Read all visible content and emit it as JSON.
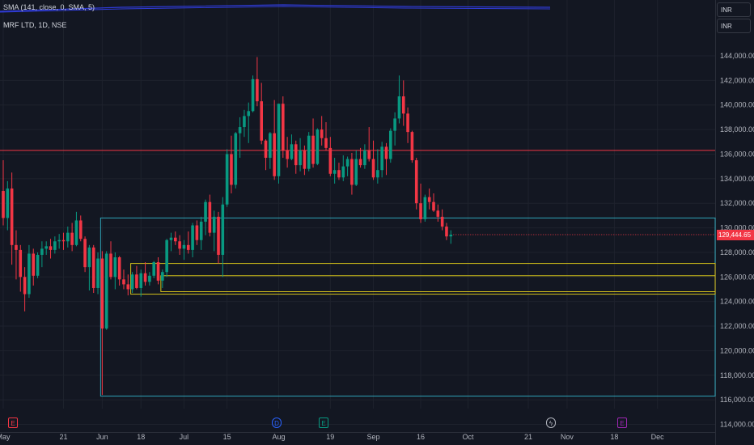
{
  "header": {
    "indicator": "SMA (141, close, 0, SMA, 5)",
    "symbol": "MRF LTD, 1D, NSE",
    "currency_top": "INR",
    "currency_second": "INR"
  },
  "last_price_label": "129,444.65",
  "colors": {
    "up": "#089981",
    "down": "#f23645",
    "bg": "#131722",
    "grid": "#1e222d",
    "hline": "#f23645",
    "box_blue": "#2fa4b8",
    "box_yellow": "#d4c21a",
    "sma": "#2f3bd6"
  },
  "icons": [
    "earnings-icon",
    "dividend-icon",
    "earnings-icon",
    "split-flash-icon",
    "earnings-icon"
  ],
  "chart_data": {
    "type": "candlestick",
    "title": "MRF LTD, 1D, NSE",
    "xlabel": "",
    "ylabel": "",
    "ylim": [
      113500,
      145500
    ],
    "y_ticks": [
      144000,
      142000,
      140000,
      138000,
      136000,
      134000,
      132000,
      130000,
      128000,
      126000,
      124000,
      122000,
      120000,
      118000,
      116000,
      114000
    ],
    "y_tick_labels": [
      "144,000.00",
      "142,000.00",
      "140,000.00",
      "138,000.00",
      "136,000.00",
      "134,000.00",
      "132,000.00",
      "130,000.00",
      "128,000.00",
      "126,000.00",
      "124,000.00",
      "122,000.00",
      "120,000.00",
      "118,000.00",
      "116,000.00",
      "114,000.00"
    ],
    "x_ticks": [
      {
        "label": "May",
        "i": 0
      },
      {
        "label": "21",
        "i": 14
      },
      {
        "label": "Jun",
        "i": 23
      },
      {
        "label": "18",
        "i": 32
      },
      {
        "label": "Jul",
        "i": 42
      },
      {
        "label": "15",
        "i": 52
      },
      {
        "label": "Aug",
        "i": 64
      },
      {
        "label": "19",
        "i": 76
      },
      {
        "label": "Sep",
        "i": 86
      },
      {
        "label": "16",
        "i": 97
      },
      {
        "label": "Oct",
        "i": 108
      },
      {
        "label": "21",
        "i": 122
      },
      {
        "label": "Nov",
        "i": 131
      },
      {
        "label": "18",
        "i": 142
      },
      {
        "label": "Dec",
        "i": 152
      }
    ],
    "candles": [
      [
        133000,
        135500,
        130200,
        130800
      ],
      [
        130800,
        133800,
        129800,
        133200
      ],
      [
        133200,
        134500,
        127000,
        128600
      ],
      [
        128600,
        129800,
        125800,
        128200
      ],
      [
        128200,
        128600,
        124800,
        126000
      ],
      [
        126000,
        126800,
        123200,
        124600
      ],
      [
        124600,
        128600,
        124300,
        127900
      ],
      [
        127900,
        128300,
        125300,
        126100
      ],
      [
        126100,
        128000,
        125900,
        127800
      ],
      [
        127800,
        128900,
        126800,
        128300
      ],
      [
        128300,
        128900,
        127800,
        128500
      ],
      [
        128500,
        129100,
        127500,
        128200
      ],
      [
        128200,
        129300,
        127900,
        128900
      ],
      [
        128900,
        129500,
        128300,
        129000
      ],
      [
        129000,
        129600,
        128200,
        128900
      ],
      [
        128900,
        130100,
        128400,
        129600
      ],
      [
        129600,
        130400,
        128100,
        128600
      ],
      [
        128600,
        131300,
        128500,
        130600
      ],
      [
        130600,
        131000,
        128900,
        129100
      ],
      [
        129100,
        129300,
        126400,
        126800
      ],
      [
        126800,
        128600,
        124900,
        128400
      ],
      [
        128400,
        128600,
        124700,
        125100
      ],
      [
        125100,
        128000,
        124600,
        127500
      ],
      [
        127500,
        128100,
        116400,
        121800
      ],
      [
        121800,
        128100,
        121700,
        127900
      ],
      [
        127900,
        128900,
        125800,
        126000
      ],
      [
        126000,
        128000,
        125000,
        127600
      ],
      [
        127600,
        127700,
        125300,
        125800
      ],
      [
        125800,
        126600,
        125000,
        125400
      ],
      [
        125400,
        126200,
        124500,
        125000
      ],
      [
        125000,
        126400,
        124700,
        126200
      ],
      [
        126200,
        126900,
        125000,
        125100
      ],
      [
        125100,
        126600,
        124400,
        126300
      ],
      [
        126300,
        127200,
        125300,
        125600
      ],
      [
        125600,
        126400,
        125300,
        126100
      ],
      [
        126100,
        127300,
        125900,
        127200
      ],
      [
        127200,
        127600,
        125400,
        125700
      ],
      [
        125700,
        126600,
        125100,
        126400
      ],
      [
        126400,
        129100,
        126000,
        129000
      ],
      [
        129000,
        129600,
        128100,
        129200
      ],
      [
        129200,
        129700,
        128600,
        128900
      ],
      [
        128900,
        129400,
        127800,
        128300
      ],
      [
        128300,
        129000,
        127400,
        128600
      ],
      [
        128600,
        129700,
        127900,
        128200
      ],
      [
        128200,
        130400,
        127600,
        130200
      ],
      [
        130200,
        130600,
        128600,
        129000
      ],
      [
        129000,
        130900,
        128200,
        130500
      ],
      [
        130500,
        132300,
        129400,
        132100
      ],
      [
        132100,
        132700,
        129300,
        129600
      ],
      [
        129600,
        131400,
        128100,
        130900
      ],
      [
        130900,
        131300,
        127100,
        127800
      ],
      [
        127800,
        132500,
        126000,
        131900
      ],
      [
        131900,
        136400,
        131700,
        136000
      ],
      [
        136000,
        137500,
        132800,
        133500
      ],
      [
        133500,
        137800,
        133200,
        137700
      ],
      [
        137700,
        139000,
        135700,
        138200
      ],
      [
        138200,
        139600,
        137400,
        139100
      ],
      [
        139100,
        140200,
        136900,
        139500
      ],
      [
        139500,
        142400,
        139400,
        142100
      ],
      [
        142100,
        143900,
        139900,
        140300
      ],
      [
        140300,
        141800,
        136800,
        137100
      ],
      [
        137100,
        137200,
        134700,
        135700
      ],
      [
        135700,
        137800,
        134800,
        137700
      ],
      [
        137700,
        140400,
        133900,
        134200
      ],
      [
        134200,
        140100,
        133600,
        140100
      ],
      [
        140100,
        140700,
        135700,
        136300
      ],
      [
        136300,
        137400,
        134900,
        135600
      ],
      [
        135600,
        137600,
        135500,
        136800
      ],
      [
        136800,
        137100,
        134400,
        135100
      ],
      [
        135100,
        137300,
        134600,
        136300
      ],
      [
        136300,
        136700,
        134300,
        134800
      ],
      [
        134800,
        137800,
        134600,
        137500
      ],
      [
        137500,
        138900,
        134900,
        135200
      ],
      [
        135200,
        138100,
        135100,
        138000
      ],
      [
        138000,
        139100,
        136700,
        137300
      ],
      [
        137300,
        138600,
        136300,
        136500
      ],
      [
        136500,
        137400,
        134200,
        134400
      ],
      [
        134400,
        135700,
        133600,
        134700
      ],
      [
        134700,
        135300,
        133900,
        134100
      ],
      [
        134100,
        135900,
        133800,
        135000
      ],
      [
        135000,
        135800,
        134200,
        135600
      ],
      [
        135600,
        136100,
        132700,
        133500
      ],
      [
        133500,
        136300,
        133400,
        135600
      ],
      [
        135600,
        136500,
        134900,
        135100
      ],
      [
        135100,
        136800,
        134800,
        136300
      ],
      [
        136300,
        138200,
        135400,
        135600
      ],
      [
        135600,
        137100,
        133900,
        134100
      ],
      [
        134100,
        136400,
        133600,
        134700
      ],
      [
        134700,
        137000,
        134100,
        136600
      ],
      [
        136600,
        136900,
        134300,
        135600
      ],
      [
        135600,
        138100,
        135300,
        137900
      ],
      [
        137900,
        139400,
        136700,
        138900
      ],
      [
        138900,
        142400,
        138500,
        140700
      ],
      [
        140700,
        142000,
        138300,
        139300
      ],
      [
        139300,
        139800,
        136900,
        137800
      ],
      [
        137800,
        137900,
        135300,
        135500
      ],
      [
        135500,
        135700,
        131500,
        132000
      ],
      [
        132000,
        133600,
        130400,
        130700
      ],
      [
        130700,
        132700,
        130500,
        132500
      ],
      [
        132500,
        133200,
        131500,
        132100
      ],
      [
        132100,
        132800,
        131300,
        131400
      ],
      [
        131400,
        131900,
        130500,
        130900
      ],
      [
        130900,
        131500,
        129800,
        130100
      ],
      [
        130100,
        130400,
        129000,
        129300
      ],
      [
        129300,
        129800,
        128700,
        129444.65
      ]
    ],
    "sma_line": {
      "label": "SMA (141, close, 0, SMA, 5)",
      "points_note": "flat overlay line near top"
    },
    "hlines": [
      {
        "price": 136300,
        "color": "#f23645"
      }
    ],
    "boxes": [
      {
        "color": "#2fa4b8",
        "x_start_i": 23,
        "y_top": 130800,
        "y_bottom": 116300
      },
      {
        "color": "#d4c21a",
        "x_start_i": 30,
        "y_top": 127100,
        "y_bottom": 124600
      },
      {
        "color": "#d4c21a",
        "x_start_i": 37,
        "y_top": 126100,
        "y_bottom": 124800
      }
    ],
    "grid": true
  }
}
